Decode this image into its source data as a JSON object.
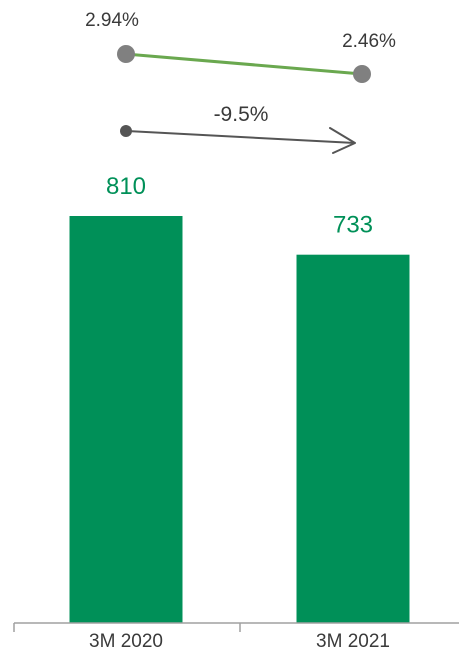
{
  "chart_data": {
    "type": "bar",
    "categories": [
      "3M 2020",
      "3M 2021"
    ],
    "values": [
      810,
      733
    ],
    "value_labels": [
      "810",
      "733"
    ],
    "rate_series": {
      "values": [
        2.94,
        2.46
      ],
      "labels": [
        "2.94%",
        "2.46%"
      ]
    },
    "change_label": "-9.5%",
    "ylim": [
      0,
      810
    ],
    "grid": false,
    "legend": "none"
  },
  "colors": {
    "bar": "#009058",
    "rate_line": "#6aa84f",
    "rate_marker": "#808080",
    "arrow": "#555555",
    "axis": "#a0a0a0",
    "value_text": "#009058",
    "text": "#3a3a3a"
  }
}
